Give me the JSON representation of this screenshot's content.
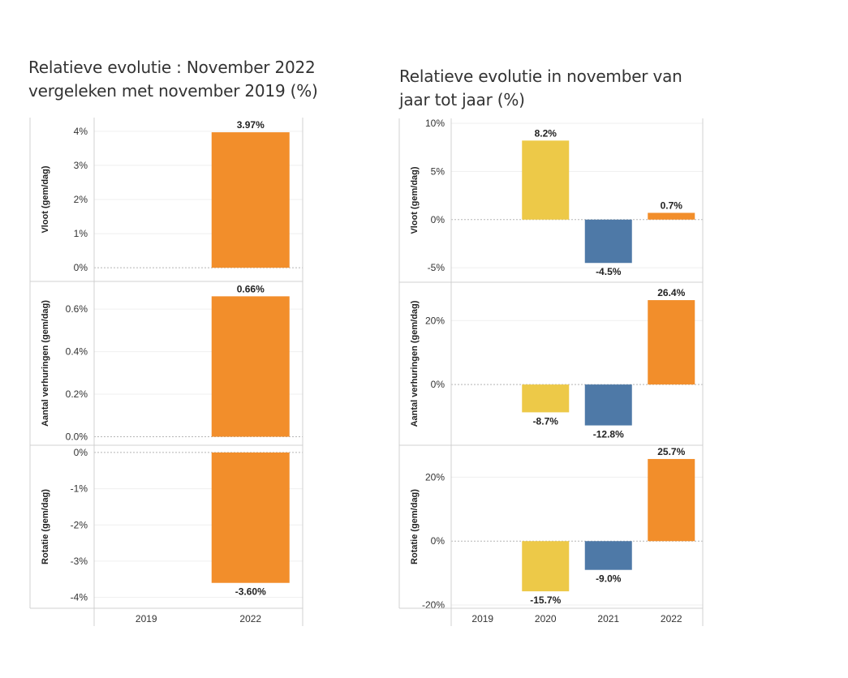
{
  "chart_data": [
    {
      "type": "bar",
      "title": "Relatieve evolutie : November 2022 vergeleken met november 2019 (%)",
      "title_lines": [
        "Relatieve evolutie : November 2022",
        "vergeleken met november 2019 (%)"
      ],
      "categories": [
        "2019",
        "2022"
      ],
      "panels": [
        {
          "ylabel": "Vloot (gem/dag)",
          "ylim": [
            -0.4,
            4.4
          ],
          "yticks": [
            0,
            1,
            2,
            3,
            4
          ],
          "ytick_labels": [
            "0%",
            "1%",
            "2%",
            "3%",
            "4%"
          ],
          "values": [
            null,
            3.97
          ],
          "value_labels": [
            "",
            "3.97%"
          ],
          "colors": [
            "#f28e2b",
            "#f28e2b"
          ]
        },
        {
          "ylabel": "Aantal verhuringen (gem/dag)",
          "ylim": [
            -0.04,
            0.73
          ],
          "yticks": [
            0.0,
            0.2,
            0.4,
            0.6
          ],
          "ytick_labels": [
            "0.0%",
            "0.2%",
            "0.4%",
            "0.6%"
          ],
          "values": [
            null,
            0.66
          ],
          "value_labels": [
            "",
            "0.66%"
          ],
          "colors": [
            "#f28e2b",
            "#f28e2b"
          ]
        },
        {
          "ylabel": "Rotatie (gem/dag)",
          "ylim": [
            -4.3,
            0.2
          ],
          "yticks": [
            0,
            -1,
            -2,
            -3,
            -4
          ],
          "ytick_labels": [
            "0%",
            "-1%",
            "-2%",
            "-3%",
            "-4%"
          ],
          "values": [
            null,
            -3.6
          ],
          "value_labels": [
            "",
            "-3.60%"
          ],
          "colors": [
            "#f28e2b",
            "#f28e2b"
          ]
        }
      ]
    },
    {
      "type": "bar",
      "title": "Relatieve evolutie in november van jaar tot jaar (%)",
      "title_lines": [
        "Relatieve evolutie in november van",
        "jaar tot jaar (%)"
      ],
      "categories": [
        "2019",
        "2020",
        "2021",
        "2022"
      ],
      "panels": [
        {
          "ylabel": "Vloot (gem/dag)",
          "ylim": [
            -6.5,
            10.5
          ],
          "yticks": [
            10,
            5,
            0,
            -5
          ],
          "ytick_labels": [
            "10%",
            "5%",
            "0%",
            "-5%"
          ],
          "values": [
            null,
            8.2,
            -4.5,
            0.7
          ],
          "value_labels": [
            "",
            "8.2%",
            "-4.5%",
            "0.7%"
          ],
          "colors": [
            "#edc948",
            "#edc948",
            "#4e79a7",
            "#f28e2b"
          ]
        },
        {
          "ylabel": "Aantal verhuringen (gem/dag)",
          "ylim": [
            -19,
            32
          ],
          "yticks": [
            20,
            0
          ],
          "ytick_labels": [
            "20%",
            "0%"
          ],
          "values": [
            null,
            -8.7,
            -12.8,
            26.4
          ],
          "value_labels": [
            "",
            "-8.7%",
            "-12.8%",
            "26.4%"
          ],
          "colors": [
            "#edc948",
            "#edc948",
            "#4e79a7",
            "#f28e2b"
          ]
        },
        {
          "ylabel": "Rotatie (gem/dag)",
          "ylim": [
            -21,
            30
          ],
          "yticks": [
            20,
            0,
            -20
          ],
          "ytick_labels": [
            "20%",
            "0%",
            "-20%"
          ],
          "values": [
            null,
            -15.7,
            -9.0,
            25.7
          ],
          "value_labels": [
            "",
            "-15.7%",
            "-9.0%",
            "25.7%"
          ],
          "colors": [
            "#edc948",
            "#edc948",
            "#4e79a7",
            "#f28e2b"
          ]
        }
      ]
    }
  ]
}
